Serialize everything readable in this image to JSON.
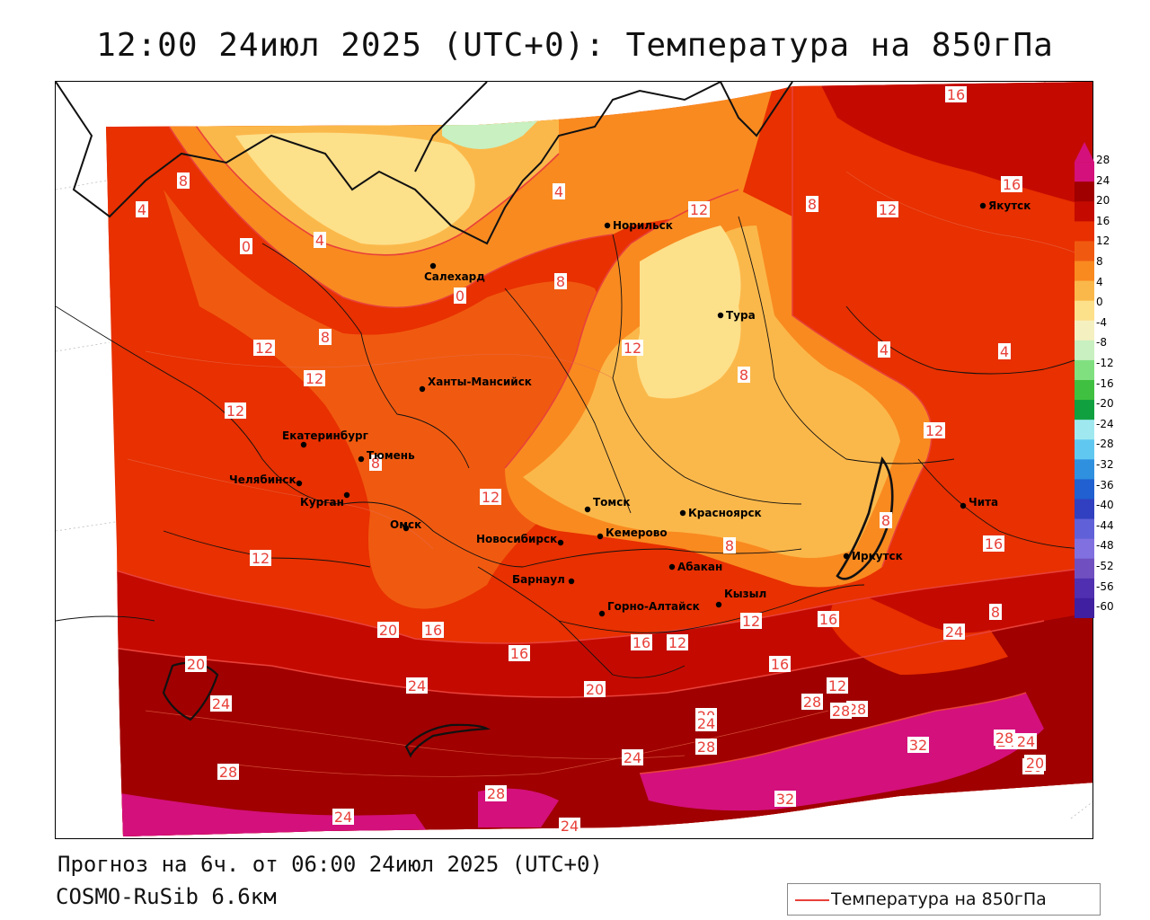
{
  "title": "12:00 24июл 2025 (UTC+0): Температура на 850гПа",
  "footer": {
    "forecast": "Прогноз на 6ч. от 06:00 24июл 2025 (UTC+0)",
    "model": "COSMO-RuSib 6.6км"
  },
  "legend": {
    "label": "Температура на 850гПа",
    "line_color": "#e8413a"
  },
  "colorbar": {
    "ticks": [
      "28",
      "24",
      "20",
      "16",
      "12",
      "8",
      "4",
      "0",
      "-4",
      "-8",
      "-12",
      "-16",
      "-20",
      "-24",
      "-28",
      "-32",
      "-36",
      "-40",
      "-44",
      "-48",
      "-52",
      "-56",
      "-60"
    ],
    "colors": [
      "#d4107c",
      "#a00000",
      "#c40a00",
      "#e83000",
      "#f05a10",
      "#f98a20",
      "#fbb84a",
      "#fde08a",
      "#f5f0c0",
      "#c8f0c0",
      "#80e080",
      "#40c040",
      "#10a040",
      "#a0e8f0",
      "#60c8f0",
      "#3090e0",
      "#2060d0",
      "#3040c0",
      "#6060d8",
      "#8070e0",
      "#7050c0",
      "#5030b0",
      "#4020a0"
    ]
  },
  "cities": [
    {
      "name": "Норильск"
    },
    {
      "name": "Якутск"
    },
    {
      "name": "Салехард"
    },
    {
      "name": "Тура"
    },
    {
      "name": "Ханты-Мансийск"
    },
    {
      "name": "Екатеринбург"
    },
    {
      "name": "Тюмень"
    },
    {
      "name": "Челябинск"
    },
    {
      "name": "Курган"
    },
    {
      "name": "Омск"
    },
    {
      "name": "Новосибирск"
    },
    {
      "name": "Томск"
    },
    {
      "name": "Кемерово"
    },
    {
      "name": "Красноярск"
    },
    {
      "name": "Барнаул"
    },
    {
      "name": "Абакан"
    },
    {
      "name": "Горно-Алтайск"
    },
    {
      "name": "Кызыл"
    },
    {
      "name": "Иркутск"
    },
    {
      "name": "Чита"
    }
  ],
  "contour_labels": [
    "16",
    "16",
    "12",
    "8",
    "12",
    "8",
    "4",
    "0",
    "4",
    "0",
    "8",
    "4",
    "12",
    "8",
    "4",
    "4",
    "12",
    "8",
    "12",
    "12",
    "12",
    "8",
    "12",
    "8",
    "16",
    "8",
    "12",
    "16",
    "20",
    "16",
    "20",
    "12",
    "16",
    "16",
    "12",
    "16",
    "8",
    "20",
    "24",
    "24",
    "24",
    "20",
    "20",
    "24",
    "28",
    "24",
    "28",
    "28",
    "12",
    "20",
    "28",
    "24",
    "32",
    "28",
    "24",
    "20",
    "28",
    "24",
    "32",
    "28",
    "24"
  ],
  "map_layers": [
    "temperature-fill",
    "contour-lines",
    "coastlines",
    "region-borders",
    "lake-baikal",
    "lake-balkhash"
  ]
}
